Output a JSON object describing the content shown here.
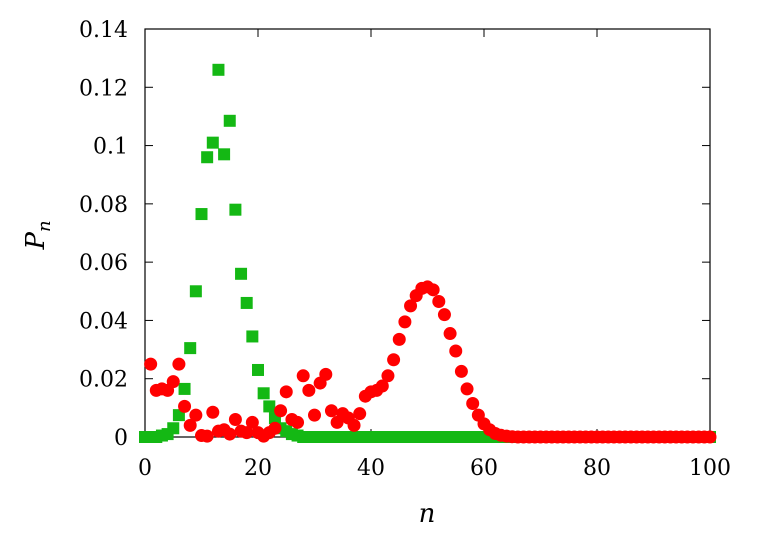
{
  "chart_data": {
    "type": "scatter",
    "title": "",
    "xlabel": "n",
    "ylabel_main": "P",
    "ylabel_sub": "n",
    "xlim": [
      0,
      100
    ],
    "ylim": [
      0,
      0.14
    ],
    "xticks": [
      "0",
      "20",
      "40",
      "60",
      "80",
      "100"
    ],
    "yticks": [
      "0",
      "0.02",
      "0.04",
      "0.06",
      "0.08",
      "0.1",
      "0.12",
      "0.14"
    ],
    "grid": false,
    "legend": "none",
    "colors": {
      "green": "#14b814",
      "red": "#ff0000",
      "axis": "#000000"
    },
    "series": [
      {
        "marker": "square",
        "color": "#14b814",
        "x": [
          0,
          1,
          2,
          3,
          4,
          5,
          6,
          7,
          8,
          9,
          10,
          11,
          12,
          13,
          14,
          15,
          16,
          17,
          18,
          19,
          20,
          21,
          22,
          23,
          24,
          25,
          26,
          27,
          28,
          29,
          30,
          31,
          32,
          33,
          34,
          35,
          36,
          37,
          38,
          39,
          40,
          41,
          42,
          43,
          44,
          45,
          46,
          47,
          48,
          49,
          50,
          51,
          52,
          53,
          54,
          55,
          56,
          57,
          58,
          59,
          60,
          61,
          62,
          63,
          64,
          65,
          66,
          67,
          68,
          69,
          70,
          71,
          72,
          73,
          74,
          75,
          76,
          77,
          78,
          79,
          80,
          81,
          82,
          83,
          84,
          85,
          86,
          87,
          88,
          89,
          90,
          91,
          92,
          93,
          94,
          95,
          96,
          97,
          98,
          99,
          100
        ],
        "y": [
          0,
          0,
          0,
          0.0005,
          0.001,
          0.003,
          0.0075,
          0.0165,
          0.0305,
          0.05,
          0.0765,
          0.096,
          0.101,
          0.126,
          0.097,
          0.1085,
          0.078,
          0.056,
          0.046,
          0.0345,
          0.023,
          0.015,
          0.0105,
          0.0065,
          0.003,
          0.002,
          0.001,
          0.0005,
          0,
          0,
          0,
          0,
          0,
          0,
          0,
          0,
          0,
          0,
          0,
          0,
          0,
          0,
          0,
          0,
          0,
          0,
          0,
          0,
          0,
          0,
          0,
          0,
          0,
          0,
          0,
          0,
          0,
          0,
          0,
          0,
          0,
          0,
          0,
          0,
          0,
          0,
          0,
          0,
          0,
          0,
          0,
          0,
          0,
          0,
          0,
          0,
          0,
          0,
          0,
          0,
          0,
          0,
          0,
          0,
          0,
          0,
          0,
          0,
          0,
          0,
          0,
          0,
          0,
          0,
          0,
          0,
          0,
          0,
          0,
          0,
          0
        ]
      },
      {
        "marker": "circle",
        "color": "#ff0000",
        "x": [
          1,
          2,
          3,
          4,
          5,
          6,
          7,
          8,
          9,
          10,
          11,
          12,
          13,
          14,
          15,
          16,
          17,
          18,
          19,
          20,
          21,
          22,
          23,
          24,
          25,
          26,
          27,
          28,
          29,
          30,
          31,
          32,
          33,
          34,
          35,
          36,
          37,
          38,
          39,
          40,
          41,
          42,
          43,
          44,
          45,
          46,
          47,
          48,
          49,
          50,
          51,
          52,
          53,
          54,
          55,
          56,
          57,
          58,
          59,
          60,
          61,
          62,
          63,
          64,
          65,
          66,
          67,
          68,
          69,
          70,
          71,
          72,
          73,
          74,
          75,
          76,
          77,
          78,
          79,
          80,
          81,
          82,
          83,
          84,
          85,
          86,
          87,
          88,
          89,
          90,
          91,
          92,
          93,
          94,
          95,
          96,
          97,
          98,
          99,
          100
        ],
        "y": [
          0.025,
          0.016,
          0.0165,
          0.016,
          0.019,
          0.025,
          0.0105,
          0.004,
          0.0075,
          0.0005,
          0.0003,
          0.0085,
          0.002,
          0.0025,
          0.001,
          0.006,
          0.002,
          0.0015,
          0.005,
          0.0015,
          0.0003,
          0.0015,
          0.003,
          0.009,
          0.0155,
          0.006,
          0.005,
          0.021,
          0.016,
          0.0075,
          0.0185,
          0.0215,
          0.009,
          0.005,
          0.008,
          0.0065,
          0.004,
          0.008,
          0.014,
          0.0155,
          0.016,
          0.0175,
          0.021,
          0.0265,
          0.0335,
          0.0395,
          0.045,
          0.0485,
          0.051,
          0.0515,
          0.0505,
          0.0465,
          0.042,
          0.0355,
          0.0295,
          0.0225,
          0.0165,
          0.0115,
          0.0075,
          0.0045,
          0.0025,
          0.0012,
          0.0006,
          0.0003,
          0.0001,
          0,
          0,
          0,
          0,
          0,
          0,
          0,
          0,
          0,
          0,
          0,
          0,
          0,
          0,
          0,
          0,
          0,
          0,
          0,
          0,
          0,
          0,
          0,
          0,
          0,
          0,
          0,
          0,
          0,
          0,
          0,
          0,
          0,
          0,
          0
        ]
      }
    ]
  }
}
